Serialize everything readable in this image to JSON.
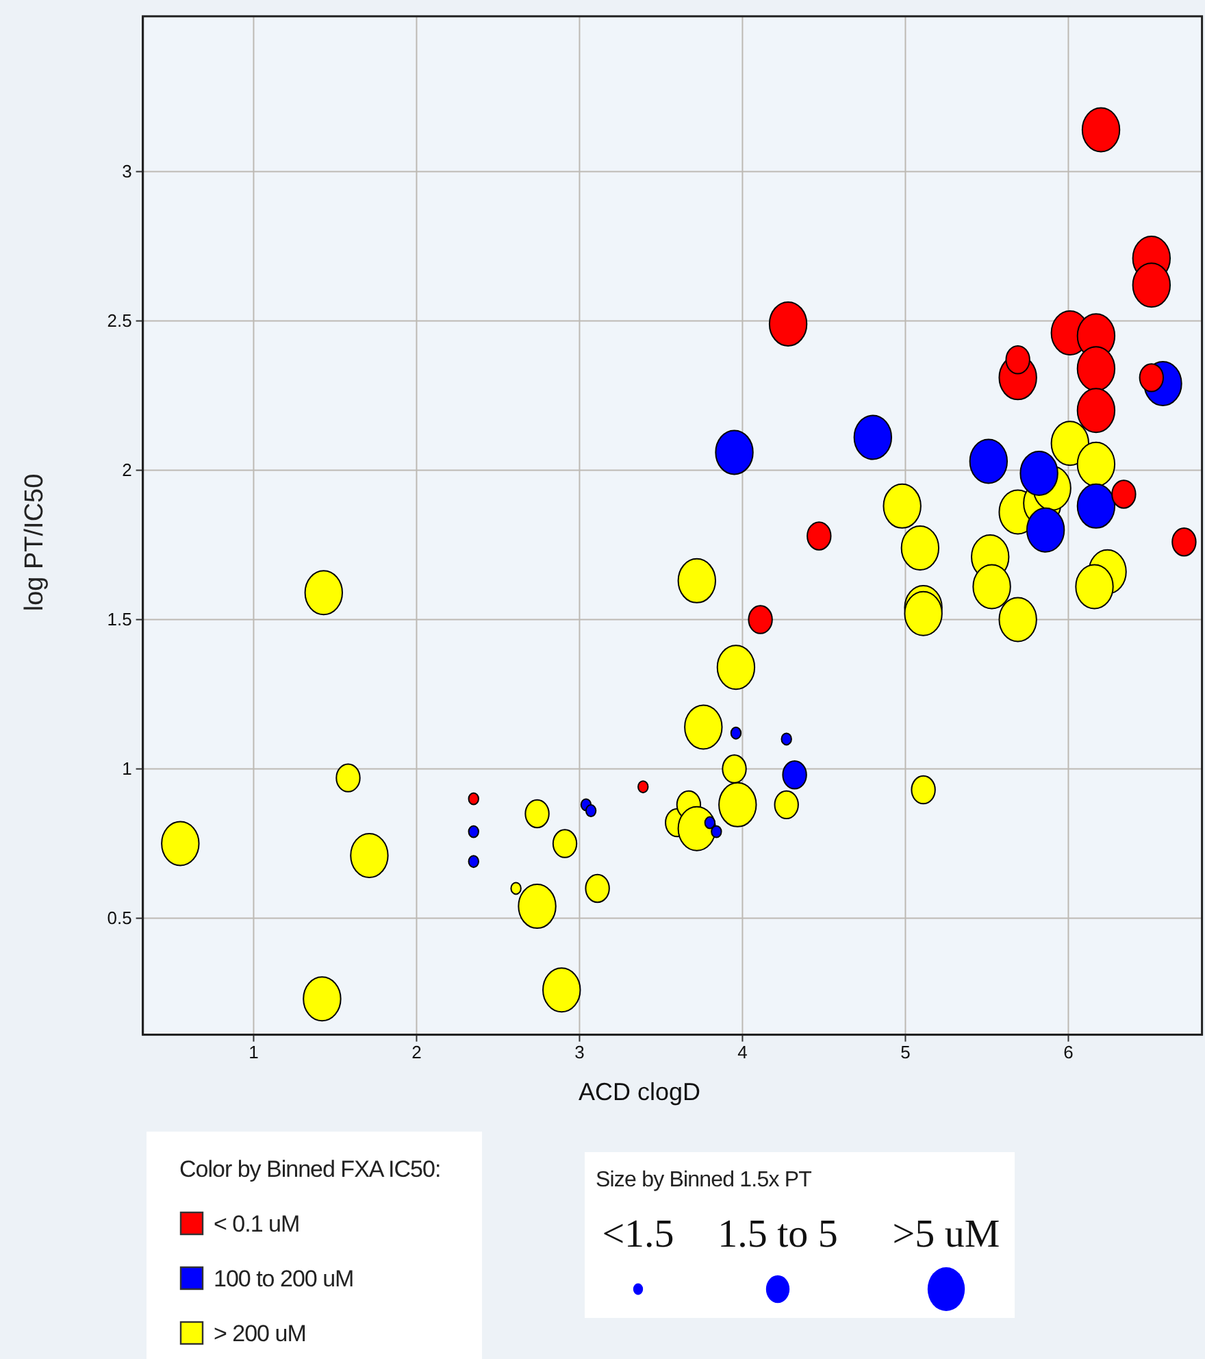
{
  "chart_data": {
    "type": "bubble",
    "xlabel": "ACD clogD",
    "ylabel": "log PT/IC50",
    "legend_title": "Color by Binned FXA IC50:",
    "legend": "bottom left",
    "grid": true,
    "xlim": [
      0.32,
      6.82
    ],
    "xticks": [
      1,
      2,
      3,
      4,
      5,
      6
    ],
    "ylim": [
      0.11,
      3.52
    ],
    "yticks": [
      0.5,
      1,
      1.5,
      2,
      2.5,
      3
    ],
    "size_legend": [
      {
        "value": 0.07,
        "label": "<1.5"
      },
      {
        "value": 0.4,
        "label": "1.5 to 5"
      },
      {
        "value": 1,
        "label": ">5 uM"
      }
    ],
    "annotations": [
      "Size by Binned 1.5x PT"
    ],
    "series": [
      {
        "name": "< 0.1 uM",
        "color": "#ff0000",
        "x": [
          2.35,
          3.39,
          4.11,
          4.47,
          4.28,
          5.69,
          5.69,
          6.01,
          6.17,
          6.17,
          6.17,
          6.2,
          6.51,
          6.51,
          6.51,
          6.34,
          6.71
        ],
        "values": [
          0.9,
          0.94,
          1.5,
          1.78,
          2.49,
          2.31,
          2.37,
          2.46,
          2.45,
          2.34,
          2.2,
          3.14,
          2.71,
          2.62,
          2.31,
          1.92,
          1.76
        ],
        "sizes": [
          0.07,
          0.07,
          0.4,
          0.4,
          1,
          1,
          0.4,
          1,
          1,
          1,
          1,
          1,
          1,
          1,
          0.4,
          0.4,
          0.4
        ]
      },
      {
        "name": "100 to 200 uM",
        "color": "#0000ff",
        "x": [
          2.35,
          2.35,
          3.04,
          3.07,
          3.8,
          3.84,
          3.96,
          4.27,
          4.32,
          3.95,
          4.8,
          5.51,
          5.82,
          5.86,
          6.17,
          6.58
        ],
        "values": [
          0.79,
          0.69,
          0.88,
          0.86,
          0.82,
          0.79,
          1.12,
          1.1,
          0.98,
          2.06,
          2.11,
          2.03,
          1.99,
          1.8,
          1.88,
          2.29
        ],
        "sizes": [
          0.07,
          0.07,
          0.07,
          0.07,
          0.07,
          0.07,
          0.07,
          0.07,
          0.4,
          1,
          1,
          1,
          1,
          1,
          1,
          1
        ]
      },
      {
        "name": "> 200 uM",
        "color": "#ffff00",
        "x": [
          0.55,
          1.43,
          1.42,
          1.58,
          1.71,
          2.61,
          2.74,
          2.74,
          2.91,
          2.89,
          3.11,
          3.6,
          3.67,
          3.72,
          3.72,
          3.76,
          3.96,
          3.95,
          3.97,
          4.27,
          4.98,
          5.09,
          5.11,
          5.11,
          5.11,
          5.52,
          5.53,
          5.69,
          5.69,
          5.84,
          5.9,
          6.01,
          6.17,
          6.24,
          6.16
        ],
        "values": [
          0.75,
          1.59,
          0.23,
          0.97,
          0.71,
          0.6,
          0.85,
          0.54,
          0.75,
          0.26,
          0.6,
          0.82,
          0.88,
          0.8,
          1.63,
          1.14,
          1.34,
          1,
          0.88,
          0.88,
          1.88,
          1.74,
          1.54,
          1.52,
          0.93,
          1.71,
          1.61,
          1.5,
          1.86,
          1.89,
          1.94,
          2.09,
          2.02,
          1.66,
          1.61
        ],
        "sizes": [
          1,
          1,
          1,
          0.4,
          1,
          0.07,
          0.4,
          1,
          0.4,
          1,
          0.4,
          0.4,
          0.4,
          1,
          1,
          1,
          1,
          0.4,
          1,
          0.4,
          1,
          1,
          1,
          1,
          0.4,
          1,
          1,
          1,
          1,
          1,
          1,
          1,
          1,
          1,
          1
        ]
      }
    ]
  }
}
